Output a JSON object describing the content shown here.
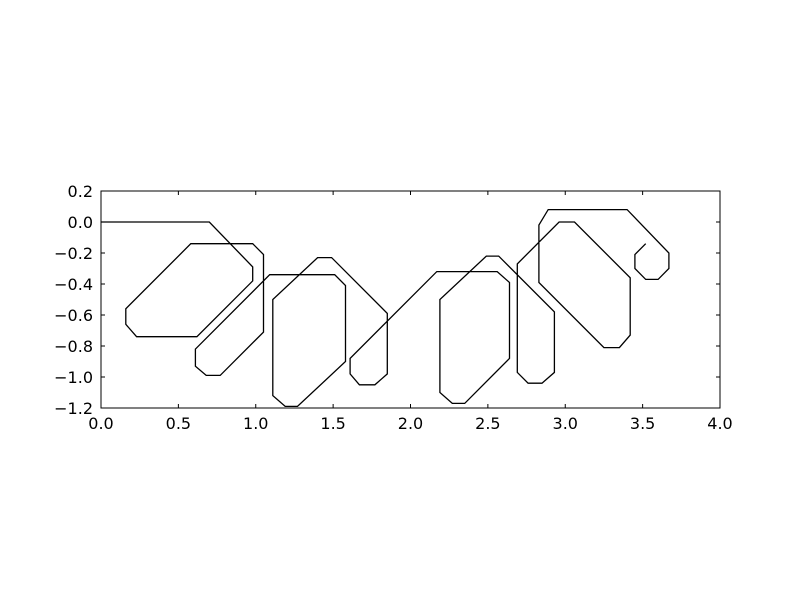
{
  "chart_data": {
    "type": "line",
    "title": "",
    "xlabel": "",
    "ylabel": "",
    "xlim": [
      0.0,
      4.0
    ],
    "ylim": [
      -1.2,
      0.2
    ],
    "xticks": [
      0.0,
      0.5,
      1.0,
      1.5,
      2.0,
      2.5,
      3.0,
      3.5,
      4.0
    ],
    "xtick_labels": [
      "0.0",
      "0.5",
      "1.0",
      "1.5",
      "2.0",
      "2.5",
      "3.0",
      "3.5",
      "4.0"
    ],
    "yticks": [
      0.2,
      0.0,
      -0.2,
      -0.4,
      -0.6,
      -0.8,
      -1.0,
      -1.2
    ],
    "ytick_labels": [
      "0.2",
      "0.0",
      "−0.2",
      "−0.4",
      "−0.6",
      "−0.8",
      "−1.0",
      "−1.2"
    ],
    "grid": false,
    "line_color": "#000000",
    "series": [
      {
        "x": [
          0.0,
          0.7,
          0.98,
          0.98,
          0.62,
          0.23,
          0.16,
          0.16,
          0.58,
          0.98,
          1.05,
          1.05,
          0.77,
          0.68,
          0.61,
          0.61,
          1.09,
          1.51,
          1.58,
          1.58,
          1.27,
          1.19,
          1.11,
          1.11,
          1.4,
          1.49,
          1.85,
          1.85,
          1.77,
          1.67,
          1.61,
          1.61,
          2.17,
          2.56,
          2.64,
          2.64,
          2.35,
          2.27,
          2.19,
          2.19,
          2.49,
          2.57,
          2.93,
          2.93,
          2.85,
          2.76,
          2.69,
          2.69,
          2.96,
          3.06,
          3.42,
          3.42,
          3.35,
          3.25,
          2.83,
          2.83,
          2.89,
          3.4,
          3.67,
          3.67,
          3.6,
          3.52,
          3.45,
          3.45,
          3.52
        ],
        "y": [
          0.0,
          0.0,
          -0.29,
          -0.38,
          -0.74,
          -0.74,
          -0.66,
          -0.56,
          -0.14,
          -0.14,
          -0.21,
          -0.71,
          -0.99,
          -0.99,
          -0.93,
          -0.82,
          -0.34,
          -0.34,
          -0.41,
          -0.9,
          -1.19,
          -1.19,
          -1.12,
          -0.5,
          -0.23,
          -0.23,
          -0.59,
          -0.98,
          -1.05,
          -1.05,
          -0.98,
          -0.88,
          -0.32,
          -0.32,
          -0.39,
          -0.88,
          -1.17,
          -1.17,
          -1.1,
          -0.5,
          -0.22,
          -0.22,
          -0.58,
          -0.97,
          -1.04,
          -1.04,
          -0.97,
          -0.27,
          0.0,
          0.0,
          -0.36,
          -0.73,
          -0.81,
          -0.81,
          -0.39,
          -0.02,
          0.08,
          0.08,
          -0.2,
          -0.3,
          -0.37,
          -0.37,
          -0.3,
          -0.21,
          -0.14
        ]
      }
    ]
  }
}
